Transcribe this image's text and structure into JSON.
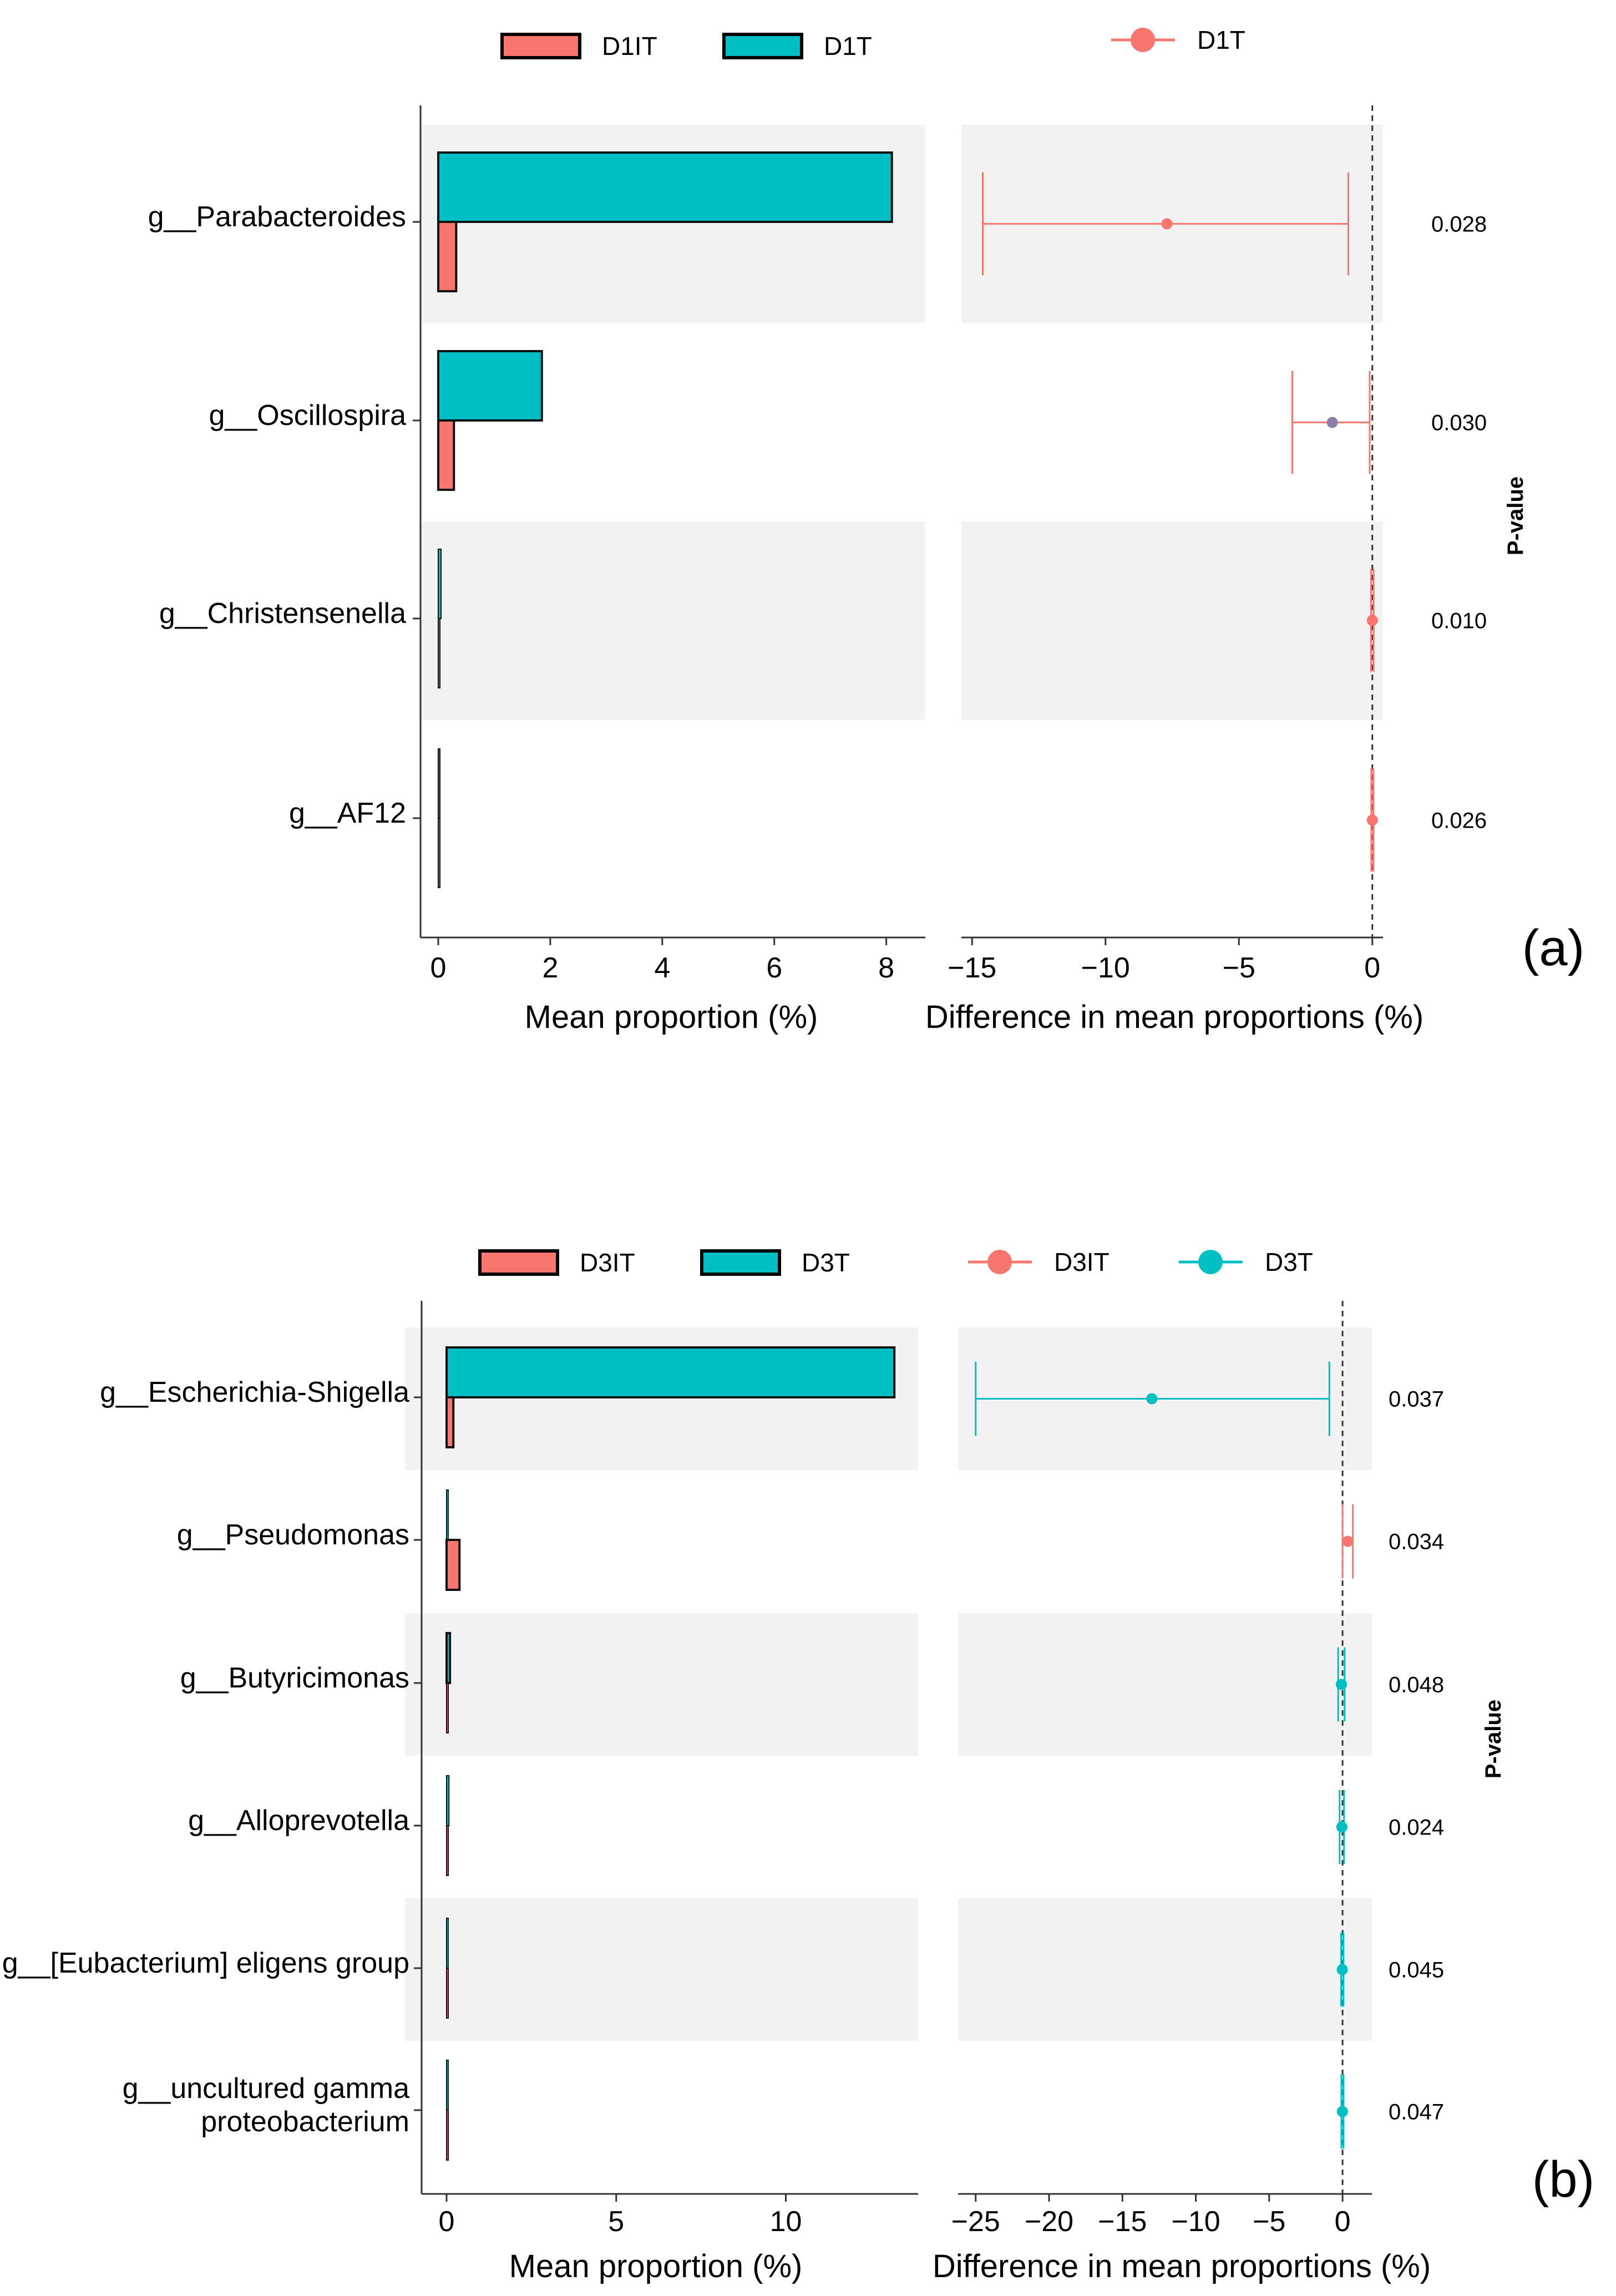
{
  "chart_data": [
    {
      "panel_label": "(a)",
      "type": "bar",
      "legend_bar": [
        "D1IT",
        "D1T"
      ],
      "legend_point": [
        "D1T"
      ],
      "colors": {
        "D1IT": "#f8766d",
        "D1T": "#00bfc4",
        "D1T_point": "#f8766d",
        "D1T_point_alt": "#8a7fa8"
      },
      "categories": [
        "g__Parabacteroides",
        "g__Oscillospira",
        "g__Christensenella",
        "g__AF12"
      ],
      "series": [
        {
          "name": "D1T",
          "values": [
            8.1,
            1.85,
            0.05,
            0.02
          ]
        },
        {
          "name": "D1IT",
          "values": [
            0.32,
            0.28,
            0.0,
            0.0
          ]
        }
      ],
      "xlabel": "Mean proportion (%)",
      "xticks": [
        "0",
        "2",
        "4",
        "6",
        "8"
      ],
      "xlim": [
        0,
        8.4
      ],
      "diff": {
        "xlabel": "Difference in mean proportions (%)",
        "xticks": [
          "-15",
          "-10",
          "-5",
          "0"
        ],
        "xlim": [
          -15.4,
          0.4
        ],
        "estimates": [
          -7.7,
          -1.5,
          0.0,
          0.0
        ],
        "ci_low": [
          -14.6,
          -3.0,
          -0.05,
          -0.04
        ],
        "ci_high": [
          -0.9,
          -0.1,
          0.05,
          0.04
        ],
        "group": [
          "D1T",
          "D1T",
          "D1T",
          "D1T"
        ]
      },
      "pvalue_label": "P-value",
      "pvalues": [
        "0.028",
        "0.030",
        "0.010",
        "0.026"
      ]
    },
    {
      "panel_label": "(b)",
      "type": "bar",
      "legend_bar": [
        "D3IT",
        "D3T"
      ],
      "legend_point": [
        "D3IT",
        "D3T"
      ],
      "colors": {
        "D3IT": "#f8766d",
        "D3T": "#00bfc4"
      },
      "categories": [
        "g__Escherichia-Shigella",
        "g__Pseudomonas",
        "g__Butyricimonas",
        "g__Alloprevotella",
        "g__[Eubacterium] eligens group",
        "g__uncultured gamma proteobacterium"
      ],
      "category_lines": [
        [
          "g__Escherichia-Shigella"
        ],
        [
          "g__Pseudomonas"
        ],
        [
          "g__Butyricimonas"
        ],
        [
          "g__Alloprevotella"
        ],
        [
          "g__[Eubacterium] eligens group"
        ],
        [
          "g__uncultured gamma",
          "proteobacterium"
        ]
      ],
      "series": [
        {
          "name": "D3T",
          "values": [
            13.2,
            0.03,
            0.1,
            0.07,
            0.02,
            0.01
          ]
        },
        {
          "name": "D3IT",
          "values": [
            0.2,
            0.38,
            0.03,
            0.02,
            0.01,
            0.01
          ]
        }
      ],
      "xlabel": "Mean proportion (%)",
      "xticks": [
        "0",
        "5",
        "10"
      ],
      "xlim": [
        -0.5,
        13.9
      ],
      "diff": {
        "xlabel": "Difference in mean proportions (%)",
        "xticks": [
          "-25",
          "-20",
          "-15",
          "-10",
          "-5",
          "0"
        ],
        "xlim": [
          -26.2,
          2.0
        ],
        "estimates": [
          -13.0,
          0.35,
          -0.08,
          -0.05,
          -0.02,
          -0.01
        ],
        "ci_low": [
          -25.0,
          0.0,
          -0.3,
          -0.2,
          -0.1,
          -0.08
        ],
        "ci_high": [
          -0.9,
          0.7,
          0.14,
          0.1,
          0.06,
          0.06
        ],
        "group": [
          "D3T",
          "D3IT",
          "D3T",
          "D3T",
          "D3T",
          "D3T"
        ]
      },
      "pvalue_label": "P-value",
      "pvalues": [
        "0.037",
        "0.034",
        "0.048",
        "0.024",
        "0.045",
        "0.047"
      ]
    }
  ]
}
